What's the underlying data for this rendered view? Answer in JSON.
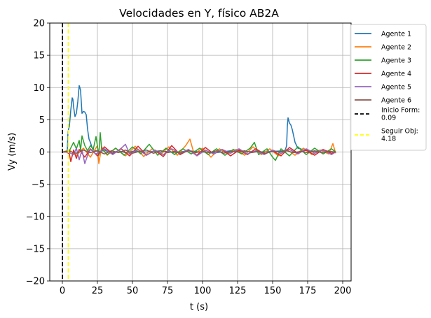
{
  "chart_data": {
    "type": "line",
    "title": "Velocidades en Y, físico AB2A",
    "xlabel": "t (s)",
    "ylabel": "Vy (m/s)",
    "xlim": [
      -9,
      206
    ],
    "ylim": [
      -20,
      20
    ],
    "xticks": [
      0,
      25,
      50,
      75,
      100,
      125,
      150,
      175,
      200
    ],
    "yticks": [
      -20,
      -15,
      -10,
      -5,
      0,
      5,
      10,
      15,
      20
    ],
    "xtick_labels": [
      "0",
      "25",
      "50",
      "75",
      "100",
      "125",
      "150",
      "175",
      "200"
    ],
    "ytick_labels": [
      "−20",
      "−15",
      "−10",
      "−5",
      "0",
      "5",
      "10",
      "15",
      "20"
    ],
    "grid": true,
    "legend_position": "outside-right",
    "series": [
      {
        "name": "Agente 1",
        "color": "#1f77b4",
        "x": [
          0,
          2,
          3.5,
          4,
          5,
          6,
          7,
          7.5,
          8,
          9,
          10,
          11,
          12,
          12.5,
          13,
          14,
          15,
          16,
          17,
          18,
          19,
          20,
          21,
          22,
          24,
          26,
          30,
          35,
          40,
          45,
          50,
          60,
          70,
          80,
          90,
          100,
          110,
          120,
          130,
          140,
          150,
          158,
          159,
          160,
          160.5,
          161,
          162,
          163,
          164,
          165,
          166,
          168,
          170,
          172,
          175,
          180,
          185,
          190,
          195
        ],
        "values": [
          0,
          0,
          0.1,
          3.2,
          4.0,
          6.5,
          8.4,
          8.2,
          7.0,
          5.5,
          6.0,
          7.8,
          10.3,
          10.0,
          9.5,
          6.0,
          6.3,
          6.2,
          5.8,
          3.5,
          2.0,
          1.5,
          0.8,
          0.3,
          0.2,
          0,
          0.3,
          -0.2,
          0.2,
          -0.1,
          0.1,
          0,
          0.2,
          -0.1,
          0.2,
          0,
          -0.1,
          0.2,
          0.1,
          0,
          0.1,
          0.2,
          0.3,
          1.0,
          4.0,
          5.3,
          4.5,
          4.2,
          3.5,
          2.5,
          1.5,
          0.6,
          0.5,
          0.3,
          0.2,
          0.1,
          0.3,
          0.1,
          0
        ]
      },
      {
        "name": "Agente 2",
        "color": "#ff7f0e",
        "x": [
          0,
          5,
          10,
          15,
          20,
          25,
          26,
          28,
          32,
          38,
          45,
          52,
          58,
          64,
          70,
          76,
          82,
          88,
          91,
          94,
          100,
          106,
          112,
          118,
          124,
          130,
          136,
          142,
          148,
          154,
          160,
          166,
          172,
          178,
          184,
          190,
          193,
          195
        ],
        "values": [
          0,
          0.3,
          -0.5,
          0.6,
          -0.8,
          1.0,
          -1.8,
          0.8,
          -0.5,
          0.6,
          -0.6,
          0.9,
          -0.7,
          0.5,
          -0.4,
          0.8,
          -0.5,
          1.0,
          2.0,
          -0.3,
          0.6,
          -0.8,
          0.5,
          -0.3,
          0.4,
          -0.5,
          0.8,
          -0.4,
          0.5,
          -0.6,
          0.4,
          -0.5,
          0.6,
          -0.4,
          0.3,
          -0.3,
          1.3,
          -0.2
        ]
      },
      {
        "name": "Agente 3",
        "color": "#2ca02c",
        "x": [
          0,
          5,
          8,
          10,
          12,
          13,
          14,
          16,
          18,
          20,
          22,
          24,
          26,
          27,
          28,
          32,
          38,
          44,
          50,
          56,
          62,
          68,
          74,
          80,
          86,
          92,
          98,
          104,
          110,
          116,
          122,
          128,
          134,
          137,
          140,
          146,
          150,
          152,
          156,
          162,
          168,
          174,
          180,
          186,
          192,
          195
        ],
        "values": [
          0,
          0.2,
          1.5,
          0.5,
          1.8,
          0.3,
          2.5,
          1.0,
          0.2,
          1.0,
          0.4,
          2.4,
          -0.5,
          3.0,
          0.5,
          -0.4,
          0.6,
          -0.5,
          0.8,
          -0.3,
          1.2,
          -0.5,
          0.6,
          -0.4,
          0.5,
          -0.3,
          0.6,
          -0.4,
          0.5,
          -0.5,
          0.4,
          -0.3,
          0.6,
          1.5,
          -0.4,
          0.5,
          -0.8,
          -1.3,
          0.5,
          -0.6,
          0.8,
          -0.4,
          0.6,
          -0.3,
          0.5,
          0
        ]
      },
      {
        "name": "Agente 4",
        "color": "#d62728",
        "x": [
          0,
          3,
          5,
          6,
          8,
          10,
          12,
          16,
          20,
          25,
          30,
          36,
          42,
          48,
          54,
          60,
          66,
          72,
          78,
          84,
          90,
          96,
          102,
          108,
          114,
          120,
          126,
          132,
          138,
          144,
          150,
          156,
          162,
          168,
          174,
          180,
          186,
          192,
          195
        ],
        "values": [
          0,
          0,
          -0.3,
          -1.5,
          0.3,
          -1.0,
          0.4,
          -0.8,
          0.5,
          -0.6,
          0.8,
          -0.3,
          0.5,
          -0.6,
          0.9,
          -0.5,
          0.3,
          -0.7,
          1.0,
          -0.4,
          0.3,
          -0.5,
          0.7,
          -0.3,
          0.4,
          -0.6,
          0.3,
          -0.4,
          0.5,
          -0.3,
          0.2,
          -0.6,
          0.7,
          -0.2,
          0.3,
          -0.5,
          0.4,
          -0.2,
          0
        ]
      },
      {
        "name": "Agente 5",
        "color": "#9467bd",
        "x": [
          0,
          4,
          8,
          10,
          12,
          14,
          16,
          18,
          20,
          24,
          30,
          36,
          42,
          45,
          48,
          54,
          60,
          66,
          72,
          78,
          84,
          90,
          96,
          102,
          108,
          114,
          120,
          126,
          132,
          138,
          144,
          150,
          156,
          162,
          168,
          174,
          180,
          186,
          192,
          195
        ],
        "values": [
          0,
          0,
          -0.4,
          0.6,
          -1.2,
          0.3,
          -1.8,
          -0.5,
          0.4,
          -0.3,
          0.5,
          -0.4,
          0.6,
          1.2,
          -0.3,
          0.4,
          -0.5,
          0.3,
          -0.4,
          0.5,
          -0.2,
          0.4,
          -0.6,
          0.3,
          -0.3,
          0.4,
          -0.2,
          0.5,
          -0.3,
          0.2,
          -0.4,
          0.3,
          -0.2,
          0.4,
          -0.3,
          0.5,
          -0.2,
          0.3,
          -0.4,
          0
        ]
      },
      {
        "name": "Agente 6",
        "color": "#8c564b",
        "x": [
          0,
          5,
          10,
          15,
          20,
          25,
          30,
          35,
          40,
          45,
          50,
          55,
          60,
          65,
          70,
          75,
          80,
          85,
          90,
          95,
          100,
          105,
          110,
          115,
          120,
          125,
          130,
          135,
          140,
          145,
          150,
          155,
          160,
          165,
          170,
          175,
          180,
          185,
          190,
          195
        ],
        "values": [
          0,
          0.1,
          -0.2,
          0.3,
          -0.1,
          0.2,
          -0.3,
          0.2,
          -0.1,
          0.3,
          -0.2,
          0.1,
          0.3,
          -0.2,
          0.2,
          -0.1,
          0.1,
          -0.2,
          0.2,
          -0.1,
          0.1,
          -0.1,
          0.2,
          -0.2,
          0.1,
          0,
          0.2,
          -0.1,
          0.1,
          -0.2,
          0.1,
          0,
          0.2,
          -0.1,
          0.1,
          -0.1,
          0.2,
          -0.1,
          0.1,
          0
        ]
      }
    ],
    "vlines": [
      {
        "name": "Inicio Form:\n0.09",
        "x": 0.09,
        "color": "#000000",
        "style": "dashed"
      },
      {
        "name": "Seguir Obj:\n4.18",
        "x": 4.18,
        "color": "#ffff00",
        "style": "dashed"
      }
    ],
    "legend": {
      "line1": [
        "Agente 1"
      ],
      "line2": [
        "Agente 2"
      ],
      "line3": [
        "Agente 3"
      ],
      "line4": [
        "Agente 4"
      ],
      "line5": [
        "Agente 5"
      ],
      "line6": [
        "Agente 6"
      ],
      "vline1": [
        "Inicio Form:",
        "0.09"
      ],
      "vline2": [
        "Seguir Obj:",
        "4.18"
      ]
    }
  }
}
